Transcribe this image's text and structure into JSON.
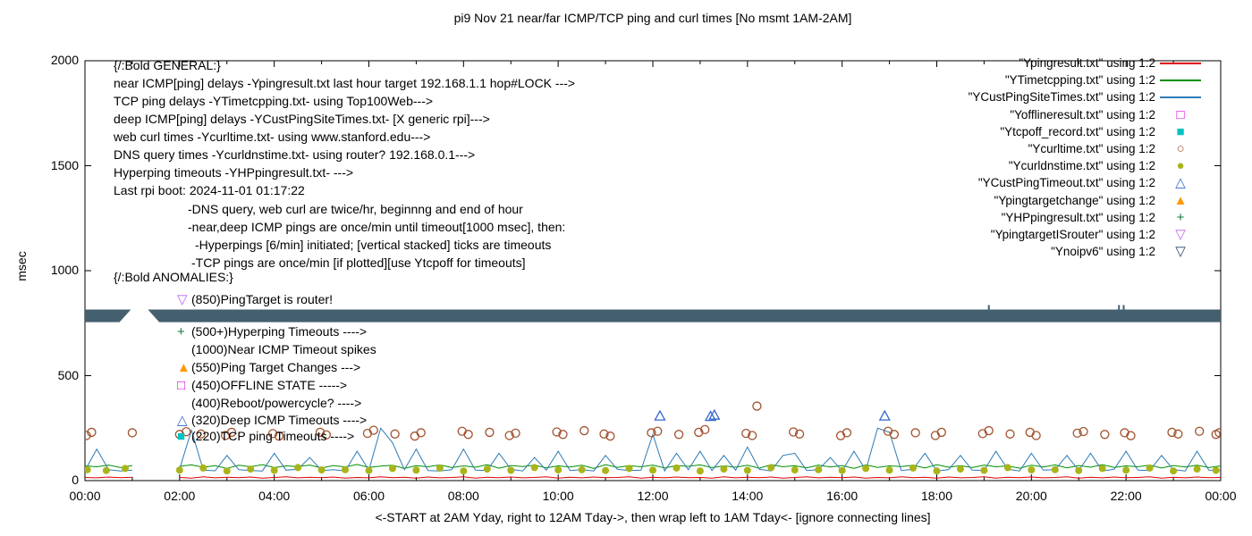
{
  "chart_data": {
    "type": "line",
    "title": "pi9 Nov 21  near/far ICMP/TCP ping and curl times [No msmt 1AM-2AM]",
    "ylabel": "msec",
    "xlabel": "<-START at 2AM Yday, right to 12AM Tday->, then wrap left to 1AM Tday<- [ignore connecting lines]",
    "ylim": [
      0,
      2000
    ],
    "xlim_hours": [
      0,
      24
    ],
    "yticks": [
      0,
      500,
      1000,
      1500,
      2000
    ],
    "xtick_labels": [
      "00:00",
      "02:00",
      "04:00",
      "06:00",
      "08:00",
      "10:00",
      "12:00",
      "14:00",
      "16:00",
      "18:00",
      "20:00",
      "22:00",
      "00:00"
    ],
    "grid": false,
    "no_measurement_window": "1AM-2AM",
    "series": [
      {
        "name": "Ypingresult.txt",
        "desc": "near ICMP ping delays",
        "type": "line",
        "color": "#e00000",
        "x_step": 0.25,
        "values": [
          15,
          13,
          17,
          14,
          16,
          null,
          null,
          null,
          15,
          12,
          18,
          13,
          16,
          14,
          17,
          12,
          15,
          18,
          13,
          16,
          14,
          17,
          12,
          15,
          13,
          18,
          14,
          16,
          12,
          17,
          13,
          15,
          18,
          12,
          16,
          14,
          17,
          13,
          15,
          18,
          12,
          16,
          13,
          17,
          14,
          15,
          18,
          12,
          16,
          13,
          17,
          14,
          15,
          12,
          18,
          13,
          16,
          14,
          17,
          12,
          15,
          18,
          13,
          16,
          14,
          17,
          12,
          15,
          13,
          18,
          14,
          16,
          12,
          17,
          13,
          15,
          18,
          12,
          16,
          14,
          17,
          13,
          15,
          18,
          12,
          16,
          13,
          17,
          14,
          15,
          18,
          12,
          16,
          13,
          17,
          14,
          15
        ]
      },
      {
        "name": "YTimetcpping.txt",
        "desc": "TCP ping delays",
        "type": "line",
        "color": "#009000",
        "x_step": 0.25,
        "values": [
          70,
          66,
          74,
          62,
          72,
          null,
          null,
          null,
          68,
          75,
          64,
          71,
          58,
          73,
          66,
          76,
          62,
          70,
          67,
          74,
          60,
          72,
          65,
          77,
          63,
          69,
          73,
          58,
          71,
          66,
          75,
          62,
          70,
          64,
          76,
          59,
          72,
          67,
          74,
          61,
          70,
          65,
          73,
          58,
          76,
          63,
          71,
          66,
          74,
          60,
          72,
          68,
          75,
          62,
          70,
          64,
          73,
          59,
          76,
          66,
          71,
          61,
          74,
          65,
          72,
          58,
          75,
          63,
          70,
          67,
          73,
          60,
          76,
          64,
          71,
          62,
          74,
          66,
          70,
          59,
          73,
          65,
          75,
          61,
          72,
          64,
          76,
          63,
          70,
          66,
          74,
          60,
          72,
          65,
          73,
          62,
          70
        ]
      },
      {
        "name": "YCustPingSiteTimes.txt",
        "desc": "deep ICMP ping delays",
        "type": "line",
        "color": "#2d7bb6",
        "x_step": 0.25,
        "values": [
          48,
          150,
          52,
          46,
          50,
          null,
          null,
          null,
          55,
          240,
          50,
          47,
          120,
          52,
          48,
          46,
          130,
          50,
          54,
          110,
          48,
          52,
          46,
          140,
          50,
          250,
          180,
          52,
          150,
          48,
          46,
          52,
          150,
          50,
          48,
          130,
          54,
          46,
          110,
          50,
          140,
          48,
          52,
          46,
          120,
          54,
          48,
          50,
          220,
          46,
          130,
          52,
          140,
          48,
          120,
          50,
          160,
          54,
          46,
          120,
          130,
          48,
          52,
          110,
          46,
          140,
          50,
          250,
          230,
          48,
          54,
          130,
          46,
          52,
          120,
          50,
          48,
          140,
          54,
          46,
          130,
          50,
          52,
          120,
          48,
          130,
          46,
          54,
          140,
          50,
          48,
          120,
          52,
          46,
          140,
          50,
          48
        ]
      },
      {
        "name": "Ycurltime.txt",
        "desc": "web curl times",
        "type": "scatter",
        "marker": "circle-open",
        "color": "#a0522d",
        "points": [
          [
            0.03,
            215
          ],
          [
            0.14,
            230
          ],
          [
            1.0,
            228
          ],
          [
            2.0,
            220
          ],
          [
            2.14,
            233
          ],
          [
            2.45,
            222
          ],
          [
            2.97,
            215
          ],
          [
            3.1,
            230
          ],
          [
            3.97,
            224
          ],
          [
            4.1,
            212
          ],
          [
            4.97,
            230
          ],
          [
            5.1,
            218
          ],
          [
            5.97,
            225
          ],
          [
            6.1,
            240
          ],
          [
            6.55,
            222
          ],
          [
            6.97,
            212
          ],
          [
            7.1,
            228
          ],
          [
            7.97,
            235
          ],
          [
            8.1,
            220
          ],
          [
            8.55,
            230
          ],
          [
            8.97,
            215
          ],
          [
            9.1,
            226
          ],
          [
            9.97,
            232
          ],
          [
            10.1,
            220
          ],
          [
            10.55,
            238
          ],
          [
            10.97,
            222
          ],
          [
            11.1,
            212
          ],
          [
            11.97,
            228
          ],
          [
            12.1,
            235
          ],
          [
            12.55,
            220
          ],
          [
            12.97,
            230
          ],
          [
            13.1,
            243
          ],
          [
            13.97,
            225
          ],
          [
            14.1,
            215
          ],
          [
            14.2,
            355
          ],
          [
            14.97,
            232
          ],
          [
            15.1,
            222
          ],
          [
            15.97,
            214
          ],
          [
            16.1,
            228
          ],
          [
            16.97,
            235
          ],
          [
            17.1,
            220
          ],
          [
            17.55,
            228
          ],
          [
            17.97,
            215
          ],
          [
            18.1,
            230
          ],
          [
            18.97,
            224
          ],
          [
            19.1,
            238
          ],
          [
            19.55,
            222
          ],
          [
            19.97,
            230
          ],
          [
            20.1,
            215
          ],
          [
            20.97,
            226
          ],
          [
            21.1,
            234
          ],
          [
            21.55,
            220
          ],
          [
            21.97,
            228
          ],
          [
            22.1,
            214
          ],
          [
            22.97,
            230
          ],
          [
            23.1,
            222
          ],
          [
            23.55,
            235
          ],
          [
            23.9,
            220
          ],
          [
            23.97,
            228
          ]
        ]
      },
      {
        "name": "Ycurldnstime.txt",
        "desc": "DNS query times",
        "type": "scatter",
        "marker": "circle-filled",
        "color": "#a9b419",
        "points": [
          [
            0.05,
            52
          ],
          [
            0.45,
            48
          ],
          [
            0.85,
            58
          ],
          [
            2.0,
            50
          ],
          [
            2.5,
            60
          ],
          [
            3.0,
            46
          ],
          [
            3.5,
            55
          ],
          [
            4.0,
            49
          ],
          [
            4.5,
            62
          ],
          [
            5.0,
            51
          ],
          [
            5.5,
            52
          ],
          [
            6.0,
            48
          ],
          [
            6.5,
            58
          ],
          [
            7.0,
            50
          ],
          [
            7.5,
            60
          ],
          [
            8.0,
            46
          ],
          [
            8.5,
            55
          ],
          [
            9.0,
            49
          ],
          [
            9.5,
            62
          ],
          [
            10.0,
            51
          ],
          [
            10.5,
            52
          ],
          [
            11.0,
            48
          ],
          [
            11.5,
            58
          ],
          [
            12.0,
            50
          ],
          [
            12.5,
            60
          ],
          [
            13.0,
            46
          ],
          [
            13.5,
            55
          ],
          [
            14.0,
            49
          ],
          [
            14.5,
            62
          ],
          [
            15.0,
            51
          ],
          [
            15.5,
            52
          ],
          [
            16.0,
            48
          ],
          [
            16.5,
            58
          ],
          [
            17.0,
            50
          ],
          [
            17.5,
            60
          ],
          [
            18.0,
            46
          ],
          [
            18.5,
            55
          ],
          [
            19.0,
            49
          ],
          [
            19.5,
            62
          ],
          [
            20.0,
            51
          ],
          [
            20.5,
            52
          ],
          [
            21.0,
            48
          ],
          [
            21.5,
            58
          ],
          [
            22.0,
            50
          ],
          [
            22.5,
            60
          ],
          [
            23.0,
            46
          ],
          [
            23.5,
            55
          ],
          [
            23.9,
            49
          ]
        ]
      },
      {
        "name": "YCustPingTimeout.txt",
        "desc": "deep ICMP timeouts",
        "type": "scatter",
        "marker": "triangle-open",
        "color": "#3366cc",
        "points": [
          [
            12.15,
            308
          ],
          [
            13.22,
            306
          ],
          [
            13.3,
            312
          ],
          [
            16.9,
            308
          ]
        ]
      },
      {
        "name": "Ynoipv6",
        "desc": "dense down-triangle band",
        "type": "band",
        "color": "#44606f",
        "value": 785,
        "half_width": 30,
        "gap_hours": [
          0.85,
          1.45
        ],
        "top_ticks": [
          19.1,
          21.85,
          21.95
        ]
      }
    ]
  },
  "legend": {
    "entries": [
      {
        "label": "\"Ypingresult.txt\" using 1:2",
        "swatch": "line",
        "color": "#e00000"
      },
      {
        "label": "\"YTimetcpping.txt\" using 1:2",
        "swatch": "line",
        "color": "#009000"
      },
      {
        "label": "\"YCustPingSiteTimes.txt\" using 1:2",
        "swatch": "line",
        "color": "#2d7bb6"
      },
      {
        "label": "\"Yofflineresult.txt\" using 1:2",
        "swatch": "square-open",
        "color": "#dd00dd"
      },
      {
        "label": "\"Ytcpoff_record.txt\" using 1:2",
        "swatch": "square-filled",
        "color": "#00c3c3"
      },
      {
        "label": "\"Ycurltime.txt\" using 1:2",
        "swatch": "circle-open",
        "color": "#a0522d"
      },
      {
        "label": "\"Ycurldnstime.txt\" using 1:2",
        "swatch": "circle-filled",
        "color": "#a9b419"
      },
      {
        "label": "\"YCustPingTimeout.txt\" using 1:2",
        "swatch": "triangle-open",
        "color": "#3366cc"
      },
      {
        "label": "\"Ypingtargetchange\" using 1:2",
        "swatch": "triangle-filled",
        "color": "#ff9900"
      },
      {
        "label": "\"YHPpingresult.txt\" using 1:2",
        "swatch": "plus",
        "color": "#0e7a3d"
      },
      {
        "label": "\"YpingtargetISrouter\" using 1:2",
        "swatch": "nabla-open",
        "color": "#bb66ee"
      },
      {
        "label": "\"Ynoipv6\" using 1:2",
        "swatch": "nabla-open",
        "color": "#27446b"
      }
    ]
  },
  "annotations": {
    "general": [
      "{/:Bold GENERAL:}",
      "near ICMP[ping] delays -Ypingresult.txt last hour target 192.168.1.1 hop#LOCK --->",
      "TCP ping delays -YTimetcpping.txt- using Top100Web--->",
      "deep ICMP[ping] delays -YCustPingSiteTimes.txt- [X generic rpi]--->",
      "web curl times -Ycurltime.txt- using www.stanford.edu--->",
      "DNS query times -Ycurldnstime.txt- using router? 192.168.0.1--->",
      "Hyperping timeouts -YHPpingresult.txt- --->",
      "Last rpi boot: 2024-11-01 01:17:22"
    ],
    "notes": [
      {
        "text": "-DNS query, web curl are twice/hr, beginnng and end of hour",
        "indent": 0
      },
      {
        "text": "-near,deep ICMP pings are once/min until timeout[1000 msec], then:",
        "indent": 0
      },
      {
        "text": "-Hyperpings [6/min] initiated; [vertical stacked] ticks are timeouts",
        "indent": 8
      },
      {
        "text": "-TCP pings are once/min [if plotted][use Ytcpoff for timeouts]",
        "indent": 4
      }
    ],
    "anomalies": [
      {
        "marker": null,
        "color": null,
        "text": "{/:Bold ANOMALIES:}"
      },
      {
        "marker": "nabla-open",
        "color": "#bb66ee",
        "text": "(850)PingTarget is router!"
      },
      {
        "marker": "plus",
        "color": "#0e7a3d",
        "text": "(500+)Hyperping Timeouts ---->"
      },
      {
        "marker": null,
        "color": null,
        "text": "(1000)Near ICMP Timeout spikes"
      },
      {
        "marker": "triangle-filled",
        "color": "#ff9900",
        "text": "(550)Ping Target Changes --->"
      },
      {
        "marker": "square-open",
        "color": "#dd00dd",
        "text": "(450)OFFLINE STATE ----->"
      },
      {
        "marker": null,
        "color": null,
        "text": "(400)Reboot/powercycle? ---->"
      },
      {
        "marker": "triangle-open",
        "color": "#3366cc",
        "text": "(320)Deep ICMP Timeouts ---->"
      },
      {
        "marker": "square-filled",
        "color": "#00c3c3",
        "text": "(220)TCP ping Timeouts ---->"
      }
    ]
  }
}
